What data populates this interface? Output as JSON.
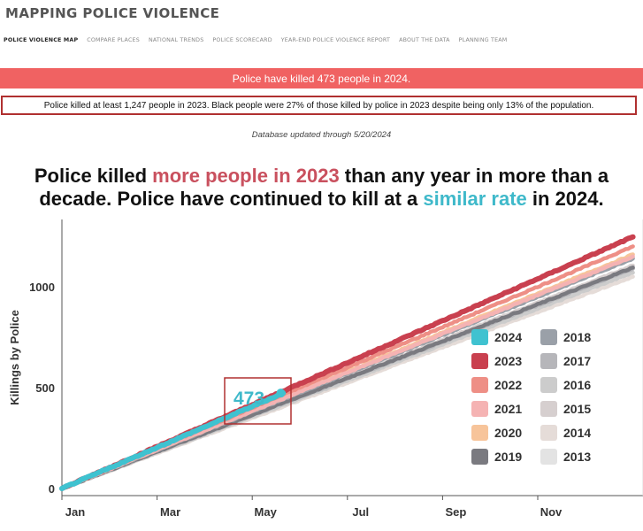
{
  "site": {
    "title": "MAPPING POLICE VIOLENCE",
    "nav": [
      "POLICE VIOLENCE MAP",
      "COMPARE PLACES",
      "NATIONAL TRENDS",
      "POLICE SCORECARD",
      "YEAR-END POLICE VIOLENCE REPORT",
      "ABOUT THE DATA",
      "PLANNING TEAM"
    ]
  },
  "alert": "Police have killed 473 people in 2024.",
  "stats": "Police killed at least 1,247 people in 2023. Black people were 27% of those killed by police in 2023 despite being only 13% of the population.",
  "database_updated": "Database updated through 5/20/2024",
  "headline": {
    "line1_pre": "Police killed ",
    "line1_red": "more people in 2023",
    "line1_post": " than any year in more than a",
    "line2_pre": "decade. Police have continued to kill at a ",
    "line2_teal": "similar rate",
    "line2_post": " in 2024."
  },
  "chart_data": {
    "type": "line",
    "title": "",
    "xlabel": "",
    "ylabel": "Killings by Police",
    "x_ticks": [
      "Jan",
      "Mar",
      "May",
      "Jul",
      "Sep",
      "Nov"
    ],
    "x_tick_months": [
      0,
      2,
      4,
      6,
      8,
      10
    ],
    "xlim_months": [
      0,
      12
    ],
    "y_ticks": [
      0,
      500,
      1000
    ],
    "ylim": [
      0,
      1300
    ],
    "annotation": {
      "label": "473",
      "series": "2024",
      "month": 4.6,
      "value": 473
    },
    "series": [
      {
        "name": "2013",
        "color": "#e3e3e3",
        "year_end_total": 1090
      },
      {
        "name": "2014",
        "color": "#e5dcd8",
        "year_end_total": 1050
      },
      {
        "name": "2015",
        "color": "#d6cfcf",
        "year_end_total": 1105
      },
      {
        "name": "2016",
        "color": "#cccccc",
        "year_end_total": 1070
      },
      {
        "name": "2017",
        "color": "#b6b6ba",
        "year_end_total": 1090
      },
      {
        "name": "2018",
        "color": "#9aa0a8",
        "year_end_total": 1140
      },
      {
        "name": "2019",
        "color": "#7a7a80",
        "year_end_total": 1095
      },
      {
        "name": "2020",
        "color": "#f7c49a",
        "year_end_total": 1160
      },
      {
        "name": "2021",
        "color": "#f5b3b3",
        "year_end_total": 1150
      },
      {
        "name": "2022",
        "color": "#ee8f86",
        "year_end_total": 1200
      },
      {
        "name": "2023",
        "color": "#c9404f",
        "year_end_total": 1247
      },
      {
        "name": "2024",
        "color": "#3fc2d0",
        "through_month": 4.65,
        "current_total": 473
      }
    ],
    "legend": {
      "position": "bottom-right",
      "left_column": [
        "2024",
        "2023",
        "2022",
        "2021",
        "2020",
        "2019"
      ],
      "right_column": [
        "2018",
        "2017",
        "2016",
        "2015",
        "2014",
        "2013"
      ]
    }
  }
}
